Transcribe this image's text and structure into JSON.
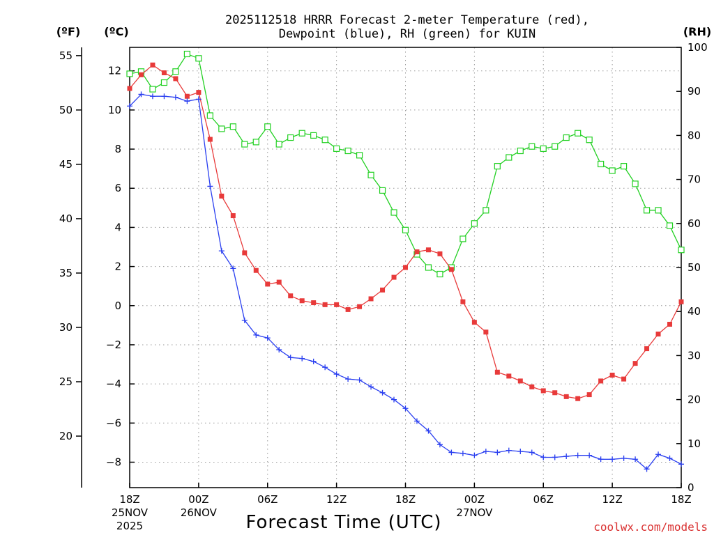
{
  "title_line1": "2025112518 HRRR Forecast 2-meter Temperature (red),",
  "title_line2": "Dewpoint (blue), RH (green) for KUIN",
  "unit_f": "(ºF)",
  "unit_c": "(ºC)",
  "unit_rh": "(RH)",
  "credit": "coolwx.com/models",
  "colors": {
    "temperature": "#e83a3a",
    "dewpoint": "#2a3ff0",
    "rh": "#22d022"
  },
  "chart_data": {
    "type": "line",
    "title": "2025112518 HRRR Forecast 2-meter Temperature (red), Dewpoint (blue), RH (green) for KUIN",
    "xlabel": "Forecast Time (UTC)",
    "x_hours": [
      0,
      1,
      2,
      3,
      4,
      5,
      6,
      7,
      8,
      9,
      10,
      11,
      12,
      13,
      14,
      15,
      16,
      17,
      18,
      19,
      20,
      21,
      22,
      23,
      24,
      25,
      26,
      27,
      28,
      29,
      30,
      31,
      32,
      33,
      34,
      35,
      36,
      37,
      38,
      39,
      40,
      41,
      42,
      43,
      44,
      45,
      46,
      47,
      48
    ],
    "x_ticks": [
      {
        "hour": 0,
        "label": "18Z",
        "sub1": "25NOV",
        "sub2": "2025"
      },
      {
        "hour": 6,
        "label": "00Z",
        "sub1": "26NOV",
        "sub2": ""
      },
      {
        "hour": 12,
        "label": "06Z",
        "sub1": "",
        "sub2": ""
      },
      {
        "hour": 18,
        "label": "12Z",
        "sub1": "",
        "sub2": ""
      },
      {
        "hour": 24,
        "label": "18Z",
        "sub1": "",
        "sub2": ""
      },
      {
        "hour": 30,
        "label": "00Z",
        "sub1": "27NOV",
        "sub2": ""
      },
      {
        "hour": 36,
        "label": "06Z",
        "sub1": "",
        "sub2": ""
      },
      {
        "hour": 42,
        "label": "12Z",
        "sub1": "",
        "sub2": ""
      },
      {
        "hour": 48,
        "label": "18Z",
        "sub1": "",
        "sub2": ""
      }
    ],
    "celsius_axis": {
      "range": [
        -9.3,
        13.2
      ],
      "ticks": [
        12,
        10,
        8,
        6,
        4,
        2,
        0,
        -2,
        -4,
        -6,
        -8
      ],
      "tick_labels": [
        "12",
        "10",
        "8",
        "6",
        "4",
        "2",
        "0",
        "−2",
        "−4",
        "−6",
        "−8"
      ]
    },
    "fahrenheit_axis": {
      "ticks": [
        55,
        50,
        45,
        40,
        35,
        30,
        25,
        20
      ]
    },
    "rh_axis": {
      "range": [
        0,
        100
      ],
      "ticks": [
        100,
        90,
        80,
        70,
        60,
        50,
        40,
        30,
        20,
        10,
        0
      ]
    },
    "series": [
      {
        "name": "2-meter Temperature",
        "unit": "C",
        "color": "red",
        "marker": "filled-square",
        "values": [
          11.1,
          11.8,
          12.3,
          11.9,
          11.6,
          10.7,
          10.9,
          8.5,
          5.6,
          4.6,
          2.7,
          1.8,
          1.1,
          1.2,
          0.5,
          0.25,
          0.15,
          0.05,
          0.05,
          -0.2,
          -0.05,
          0.35,
          0.8,
          1.45,
          1.95,
          2.75,
          2.85,
          2.65,
          1.85,
          0.2,
          -0.85,
          -1.35,
          -3.4,
          -3.6,
          -3.85,
          -4.15,
          -4.35,
          -4.45,
          -4.65,
          -4.75,
          -4.55,
          -3.85,
          -3.55,
          -3.75,
          -2.95,
          -2.2,
          -1.45,
          -0.95,
          0.2
        ]
      },
      {
        "name": "Dewpoint",
        "unit": "C",
        "color": "blue",
        "marker": "plus",
        "values": [
          10.2,
          10.8,
          10.7,
          10.7,
          10.65,
          10.45,
          10.55,
          6.1,
          2.8,
          1.9,
          -0.75,
          -1.5,
          -1.65,
          -2.25,
          -2.65,
          -2.7,
          -2.85,
          -3.15,
          -3.5,
          -3.75,
          -3.8,
          -4.15,
          -4.45,
          -4.8,
          -5.25,
          -5.9,
          -6.4,
          -7.1,
          -7.5,
          -7.55,
          -7.65,
          -7.45,
          -7.5,
          -7.4,
          -7.45,
          -7.5,
          -7.75,
          -7.75,
          -7.7,
          -7.65,
          -7.65,
          -7.85,
          -7.85,
          -7.8,
          -7.85,
          -8.35,
          -7.6,
          -7.8,
          -8.1
        ]
      },
      {
        "name": "RH",
        "unit": "%",
        "color": "green",
        "marker": "open-square",
        "values": [
          94,
          94.5,
          90.5,
          92,
          94.5,
          98.5,
          97.5,
          84.5,
          81.5,
          82,
          78,
          78.5,
          82,
          78,
          79.5,
          80.5,
          80,
          79,
          77,
          76.5,
          75.5,
          71,
          67.5,
          62.5,
          58.5,
          53,
          50,
          48.5,
          50,
          56.5,
          60,
          63,
          73,
          75,
          76.5,
          77.5,
          77,
          77.5,
          79.5,
          80.5,
          79,
          73.5,
          72,
          73,
          69,
          63,
          63,
          59.5,
          54
        ]
      }
    ]
  }
}
